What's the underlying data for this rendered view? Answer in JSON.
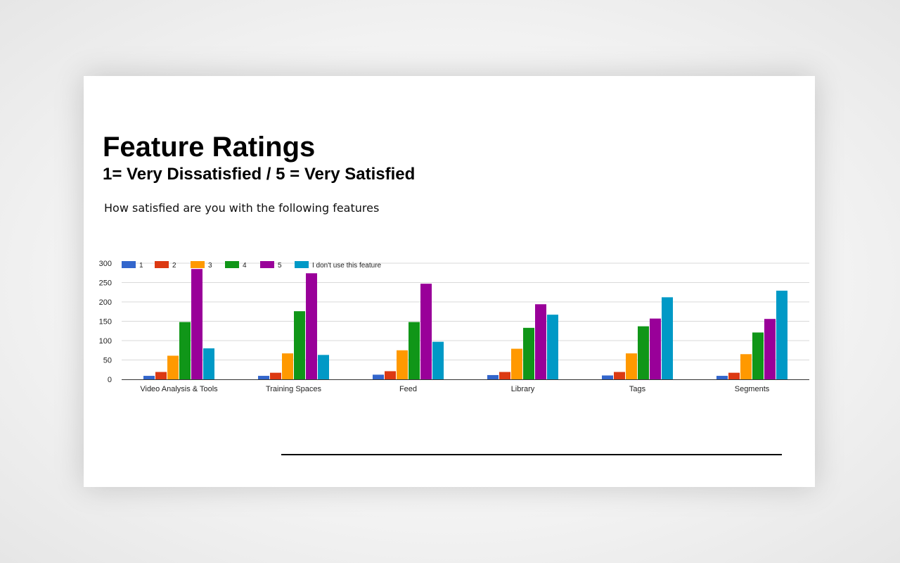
{
  "slide": {
    "title": "Feature Ratings",
    "subtitle": "1= Very Dissatisfied / 5 = Very Satisfied",
    "question": "How satisfied are you with the following features"
  },
  "chart_data": {
    "type": "bar",
    "title": "",
    "xlabel": "",
    "ylabel": "",
    "ylim": [
      0,
      300
    ],
    "yticks": [
      0,
      50,
      100,
      150,
      200,
      250,
      300
    ],
    "grid": true,
    "legend_position": "top-left",
    "categories": [
      "Video Analysis & Tools",
      "Training Spaces",
      "Feed",
      "Library",
      "Tags",
      "Segments"
    ],
    "series": [
      {
        "name": "1",
        "color": "#3366cc",
        "values": [
          9,
          9,
          12,
          11,
          10,
          9
        ]
      },
      {
        "name": "2",
        "color": "#dc3912",
        "values": [
          19,
          17,
          21,
          19,
          19,
          17
        ]
      },
      {
        "name": "3",
        "color": "#ff9900",
        "values": [
          61,
          67,
          75,
          79,
          67,
          65
        ]
      },
      {
        "name": "4",
        "color": "#109618",
        "values": [
          148,
          176,
          148,
          133,
          137,
          121
        ]
      },
      {
        "name": "5",
        "color": "#990099",
        "values": [
          285,
          274,
          247,
          194,
          157,
          156
        ]
      },
      {
        "name": "I don't use this feature",
        "color": "#0099c6",
        "values": [
          80,
          63,
          97,
          167,
          212,
          229
        ]
      }
    ]
  }
}
